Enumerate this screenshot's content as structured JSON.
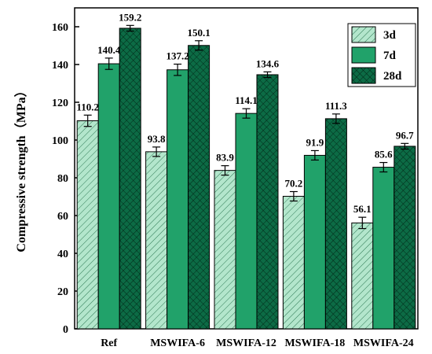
{
  "chart_data": {
    "type": "bar",
    "title": "",
    "xlabel": "",
    "ylabel": "Compressive strength（MPa）",
    "ylim": [
      0,
      170
    ],
    "yticks": [
      0,
      20,
      40,
      60,
      80,
      100,
      120,
      140,
      160
    ],
    "categories": [
      "Ref",
      "MSWIFA-6",
      "MSWIFA-12",
      "MSWIFA-18",
      "MSWIFA-24"
    ],
    "legend_position": "top-right",
    "grid": false,
    "series": [
      {
        "name": "3d",
        "values": [
          110.2,
          93.8,
          83.9,
          70.2,
          56.1
        ],
        "labels": [
          "110.2",
          "93.8",
          "83.9",
          "70.2",
          "56.1"
        ],
        "errors": [
          3,
          2.5,
          2.5,
          2.5,
          3
        ],
        "color": "#b3e6cc",
        "pattern": "diagonal-hatch"
      },
      {
        "name": "7d",
        "values": [
          140.4,
          137.2,
          114.1,
          91.9,
          85.6
        ],
        "labels": [
          "140.4",
          "137.2",
          "114.1",
          "91.9",
          "85.6"
        ],
        "errors": [
          3,
          3,
          2.5,
          2.5,
          2.5
        ],
        "color": "#21a26a",
        "pattern": "solid"
      },
      {
        "name": "28d",
        "values": [
          159.2,
          150.1,
          134.6,
          111.3,
          96.7
        ],
        "labels": [
          "159.2",
          "150.1",
          "134.6",
          "111.3",
          "96.7"
        ],
        "errors": [
          1.5,
          2.5,
          1.5,
          2.5,
          1.5
        ],
        "color": "#0c6b45",
        "pattern": "cross-hatch"
      }
    ]
  }
}
